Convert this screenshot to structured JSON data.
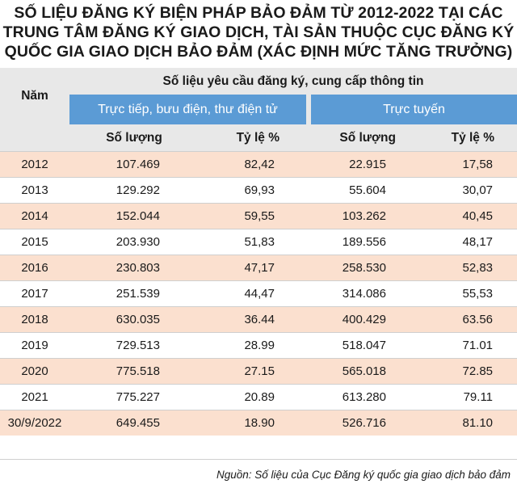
{
  "title": {
    "line1": "SỐ LIỆU ĐĂNG KÝ BIỆN PHÁP BẢO ĐẢM TỪ 2012-2022 TẠI CÁC",
    "line2": "TRUNG TÂM ĐĂNG KÝ GIAO DỊCH, TÀI SẢN THUỘC CỤC ĐĂNG KÝ",
    "line3": "QUỐC GIA GIAO DỊCH BẢO ĐẢM (XÁC ĐỊNH MỨC TĂNG TRƯỞNG)"
  },
  "table": {
    "year_header": "Năm",
    "group_header": "Số liệu yêu cầu đăng ký, cung cấp thông tin",
    "sub_direct": "Trực tiếp, bưu điện, thư điện tử",
    "sub_online": "Trực tuyến",
    "col_qty1": "Số lượng",
    "col_rate1": "Tỷ lệ %",
    "col_qty2": "Số lượng",
    "col_rate2": "Tỷ lệ %",
    "rows": [
      {
        "year": "2012",
        "qty1": "107.469",
        "rate1": "82,42",
        "qty2": "22.915",
        "rate2": "17,58"
      },
      {
        "year": "2013",
        "qty1": "129.292",
        "rate1": "69,93",
        "qty2": "55.604",
        "rate2": "30,07"
      },
      {
        "year": "2014",
        "qty1": "152.044",
        "rate1": "59,55",
        "qty2": "103.262",
        "rate2": "40,45"
      },
      {
        "year": "2015",
        "qty1": "203.930",
        "rate1": "51,83",
        "qty2": "189.556",
        "rate2": "48,17"
      },
      {
        "year": "2016",
        "qty1": "230.803",
        "rate1": "47,17",
        "qty2": "258.530",
        "rate2": "52,83"
      },
      {
        "year": "2017",
        "qty1": "251.539",
        "rate1": "44,47",
        "qty2": "314.086",
        "rate2": "55,53"
      },
      {
        "year": "2018",
        "qty1": "630.035",
        "rate1": "36.44",
        "qty2": "400.429",
        "rate2": "63.56"
      },
      {
        "year": "2019",
        "qty1": "729.513",
        "rate1": "28.99",
        "qty2": "518.047",
        "rate2": "71.01"
      },
      {
        "year": "2020",
        "qty1": "775.518",
        "rate1": "27.15",
        "qty2": "565.018",
        "rate2": "72.85"
      },
      {
        "year": "2021",
        "qty1": "775.227",
        "rate1": "20.89",
        "qty2": "613.280",
        "rate2": "79.11"
      },
      {
        "year": "30/9/2022",
        "qty1": "649.455",
        "rate1": "18.90",
        "qty2": "526.716",
        "rate2": "81.10"
      }
    ]
  },
  "source": "Nguồn: Số liệu của Cục Đăng ký quốc gia giao dịch bảo đảm",
  "colors": {
    "header_bg": "#e8e8e8",
    "sub_header_bg": "#5b9bd5",
    "alt_row_bg": "#fbe0cf"
  }
}
